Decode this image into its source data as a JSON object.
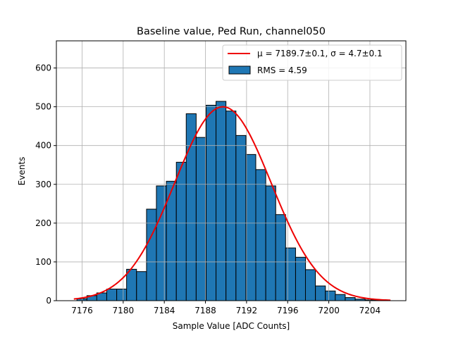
{
  "chart_data": {
    "type": "bar",
    "title": "Baseline value, Ped Run, channel050",
    "xlabel": "Sample Value [ADC Counts]",
    "ylabel": "Events",
    "xlim": [
      7173.5,
      7207.5
    ],
    "ylim": [
      0,
      670
    ],
    "grid": true,
    "legend_placement": "top-right",
    "x_ticks": [
      7176,
      7180,
      7184,
      7188,
      7192,
      7196,
      7200,
      7204
    ],
    "y_ticks": [
      0,
      100,
      200,
      300,
      400,
      500,
      600
    ],
    "histogram": {
      "name": "RMS = 4.59",
      "color": "#1f77b4",
      "edge_color": "#000000",
      "bin_width": 0.967,
      "bins": [
        {
          "x0": 7175.5,
          "count": 5
        },
        {
          "x0": 7176.47,
          "count": 13
        },
        {
          "x0": 7177.43,
          "count": 20
        },
        {
          "x0": 7178.4,
          "count": 30
        },
        {
          "x0": 7179.37,
          "count": 30
        },
        {
          "x0": 7180.33,
          "count": 81
        },
        {
          "x0": 7181.3,
          "count": 75
        },
        {
          "x0": 7182.27,
          "count": 236
        },
        {
          "x0": 7183.23,
          "count": 296
        },
        {
          "x0": 7184.2,
          "count": 308
        },
        {
          "x0": 7185.17,
          "count": 357
        },
        {
          "x0": 7186.13,
          "count": 482
        },
        {
          "x0": 7187.1,
          "count": 421
        },
        {
          "x0": 7188.07,
          "count": 504
        },
        {
          "x0": 7189.03,
          "count": 514
        },
        {
          "x0": 7190.0,
          "count": 489
        },
        {
          "x0": 7190.97,
          "count": 426
        },
        {
          "x0": 7191.93,
          "count": 377
        },
        {
          "x0": 7192.9,
          "count": 338
        },
        {
          "x0": 7193.87,
          "count": 296
        },
        {
          "x0": 7194.83,
          "count": 222
        },
        {
          "x0": 7195.8,
          "count": 136
        },
        {
          "x0": 7196.77,
          "count": 112
        },
        {
          "x0": 7197.73,
          "count": 80
        },
        {
          "x0": 7198.7,
          "count": 38
        },
        {
          "x0": 7199.67,
          "count": 25
        },
        {
          "x0": 7200.63,
          "count": 16
        },
        {
          "x0": 7201.6,
          "count": 8
        },
        {
          "x0": 7202.57,
          "count": 4
        },
        {
          "x0": 7203.53,
          "count": 2
        },
        {
          "x0": 7204.5,
          "count": 1
        }
      ]
    },
    "fit": {
      "name": "μ = 7189.7±0.1, σ = 4.7±0.1",
      "type": "gaussian",
      "color": "#ee0000",
      "mu": 7189.7,
      "sigma": 4.7,
      "amplitude": 500,
      "x_range": [
        7175.2,
        7206.0
      ]
    }
  }
}
